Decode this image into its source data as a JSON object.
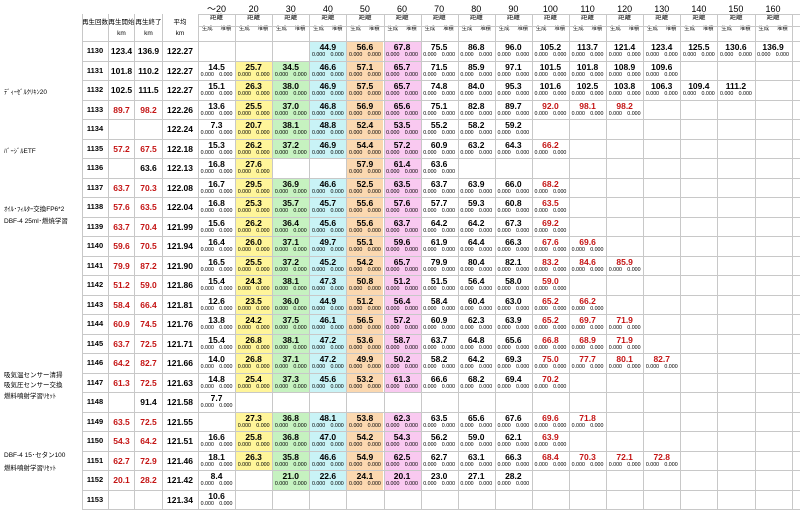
{
  "header": {
    "col_labels": [
      "再生回数",
      "再生開始",
      "再生終了",
      "平均"
    ],
    "units": [
      "km",
      "km",
      "km"
    ],
    "dist_top": "～20",
    "dist_labels": [
      "20",
      "30",
      "40",
      "50",
      "60",
      "70",
      "80",
      "90",
      "100",
      "110",
      "120",
      "130",
      "140",
      "150",
      "160"
    ],
    "sub_label": "距離",
    "sub_split": [
      "生成",
      "堆積"
    ]
  },
  "rows": [
    {
      "no": "1130",
      "start": "123.4",
      "end": "136.9",
      "avg": "122.27"
    },
    {
      "no": "1131",
      "start": "101.8",
      "end": "110.2",
      "avg": "122.27"
    },
    {
      "no": "1132",
      "start": "102.5",
      "end": "111.5",
      "avg": "122.27"
    },
    {
      "no": "1133",
      "start": "89.7",
      "end": "98.2",
      "avg": "122.26"
    },
    {
      "no": "1134",
      "start": "",
      "end": "",
      "avg": "122.24"
    },
    {
      "no": "1135",
      "start": "57.2",
      "end": "67.5",
      "avg": "122.18"
    },
    {
      "no": "1136",
      "start": "",
      "end": "63.6",
      "avg": "122.13"
    },
    {
      "no": "1137",
      "start": "63.7",
      "end": "70.3",
      "avg": "122.08"
    },
    {
      "no": "1138",
      "start": "57.6",
      "end": "63.5",
      "avg": "122.04"
    },
    {
      "no": "1139",
      "start": "63.7",
      "end": "70.4",
      "avg": "121.99"
    },
    {
      "no": "1140",
      "start": "59.6",
      "end": "70.5",
      "avg": "121.94"
    },
    {
      "no": "1141",
      "start": "79.9",
      "end": "87.2",
      "avg": "121.90"
    },
    {
      "no": "1142",
      "start": "51.2",
      "end": "59.0",
      "avg": "121.86"
    },
    {
      "no": "1143",
      "start": "58.4",
      "end": "66.4",
      "avg": "121.81"
    },
    {
      "no": "1144",
      "start": "60.9",
      "end": "74.5",
      "avg": "121.76"
    },
    {
      "no": "1145",
      "start": "63.7",
      "end": "72.5",
      "avg": "121.71"
    },
    {
      "no": "1146",
      "start": "64.2",
      "end": "82.7",
      "avg": "121.66"
    },
    {
      "no": "1147",
      "start": "61.3",
      "end": "72.5",
      "avg": "121.63"
    },
    {
      "no": "1148",
      "start": "",
      "end": "91.4",
      "avg": "121.58"
    },
    {
      "no": "1149",
      "start": "63.5",
      "end": "72.5",
      "avg": "121.55"
    },
    {
      "no": "1150",
      "start": "54.3",
      "end": "64.2",
      "avg": "121.51"
    },
    {
      "no": "1151",
      "start": "62.7",
      "end": "72.9",
      "avg": "121.46"
    },
    {
      "no": "1152",
      "start": "20.1",
      "end": "28.2",
      "avg": "121.42"
    },
    {
      "no": "1153",
      "start": "",
      "end": "",
      "avg": "121.34"
    }
  ],
  "notes": [
    {
      "text": "ﾃﾞｨｰｾﾞﾙｸﾘｷﾝ20",
      "row": 2
    },
    {
      "text": "ﾊﾞｰｼﾞﾙETF",
      "row": 5
    },
    {
      "text": "ｵｲﾙ･ﾌｨﾙﾀｰ交換FP6*2",
      "row": 8
    },
    {
      "text": "DBF-4  25ml･燃焼学習",
      "row": 8.6
    },
    {
      "text": "吸気温センサー清掃",
      "row": 16.5
    },
    {
      "text": "吸気圧センサー交換",
      "row": 17
    },
    {
      "text": "燃料噴射学習ﾘｾｯﾄ",
      "row": 17.6
    },
    {
      "text": "DBF-4  15･セタン100",
      "row": 20.6
    },
    {
      "text": "燃料噴射学習ﾘｾｯﾄ",
      "row": 21.3
    }
  ],
  "cells": [
    [
      "",
      "",
      "",
      "44.9",
      "56.6",
      "67.8",
      "75.5",
      "86.8",
      "96.0",
      "105.2",
      "113.7",
      "121.4",
      "123.4",
      "125.5",
      "130.6",
      "136.9"
    ],
    [
      "14.5",
      "25.7",
      "34.5",
      "46.6",
      "57.1",
      "65.7",
      "71.5",
      "85.9",
      "97.1",
      "101.5",
      "101.8",
      "108.9",
      "109.6",
      "",
      "",
      ""
    ],
    [
      "15.1",
      "26.3",
      "38.0",
      "46.9",
      "57.5",
      "65.7",
      "74.8",
      "84.0",
      "95.3",
      "101.6",
      "102.5",
      "103.8",
      "106.3",
      "109.4",
      "111.2",
      ""
    ],
    [
      "13.6",
      "25.5",
      "37.0",
      "46.8",
      "56.9",
      "65.6",
      "75.1",
      "82.8",
      "89.7",
      "92.0",
      "98.1",
      "98.2",
      "",
      "",
      "",
      ""
    ],
    [
      "7.3",
      "20.7",
      "38.1",
      "48.8",
      "52.4",
      "53.5",
      "55.2",
      "58.2",
      "59.2",
      "",
      "",
      "",
      "",
      "",
      "",
      ""
    ],
    [
      "15.3",
      "26.2",
      "37.2",
      "46.9",
      "54.4",
      "57.2",
      "60.9",
      "63.2",
      "64.3",
      "66.2",
      "",
      "",
      "",
      "",
      "",
      ""
    ],
    [
      "16.8",
      "27.6",
      "",
      "",
      "57.9",
      "61.4",
      "63.6",
      "",
      "",
      "",
      "",
      "",
      "",
      "",
      "",
      ""
    ],
    [
      "16.7",
      "29.5",
      "36.9",
      "46.6",
      "52.5",
      "63.5",
      "63.7",
      "63.9",
      "66.0",
      "68.2",
      "",
      "",
      "",
      "",
      "",
      ""
    ],
    [
      "16.8",
      "25.3",
      "35.7",
      "45.7",
      "55.6",
      "57.6",
      "57.7",
      "59.3",
      "60.8",
      "63.5",
      "",
      "",
      "",
      "",
      "",
      ""
    ],
    [
      "15.6",
      "26.2",
      "36.4",
      "45.6",
      "55.6",
      "63.7",
      "64.2",
      "64.2",
      "67.3",
      "69.2",
      "",
      "",
      "",
      "",
      "",
      ""
    ],
    [
      "16.4",
      "26.0",
      "37.1",
      "49.7",
      "55.1",
      "59.6",
      "61.9",
      "64.4",
      "66.3",
      "67.6",
      "69.6",
      "",
      "",
      "",
      "",
      ""
    ],
    [
      "16.5",
      "25.5",
      "37.2",
      "45.2",
      "54.2",
      "65.7",
      "79.9",
      "80.4",
      "82.1",
      "83.2",
      "84.6",
      "85.9",
      "",
      "",
      "",
      ""
    ],
    [
      "15.4",
      "24.3",
      "38.1",
      "47.3",
      "50.8",
      "51.2",
      "51.5",
      "56.4",
      "58.0",
      "59.0",
      "",
      "",
      "",
      "",
      "",
      ""
    ],
    [
      "12.6",
      "23.5",
      "36.0",
      "44.9",
      "51.2",
      "56.4",
      "58.4",
      "60.4",
      "63.0",
      "65.2",
      "66.2",
      "",
      "",
      "",
      "",
      ""
    ],
    [
      "13.8",
      "24.2",
      "37.5",
      "46.1",
      "56.5",
      "57.2",
      "60.9",
      "62.3",
      "63.9",
      "65.2",
      "69.7",
      "71.9",
      "",
      "",
      "",
      ""
    ],
    [
      "15.4",
      "26.8",
      "38.1",
      "47.2",
      "53.6",
      "58.7",
      "63.7",
      "64.8",
      "65.6",
      "66.8",
      "68.9",
      "71.9",
      "",
      "",
      "",
      ""
    ],
    [
      "14.0",
      "26.8",
      "37.1",
      "47.2",
      "49.9",
      "50.2",
      "58.2",
      "64.2",
      "69.3",
      "75.0",
      "77.7",
      "80.1",
      "82.7",
      "",
      "",
      ""
    ],
    [
      "14.8",
      "25.4",
      "37.3",
      "45.6",
      "53.2",
      "61.3",
      "66.6",
      "68.2",
      "69.4",
      "70.2",
      "",
      "",
      "",
      "",
      "",
      ""
    ],
    [
      "7.7",
      "",
      "",
      "",
      "",
      "",
      "",
      "",
      "",
      "",
      "",
      "",
      "",
      "",
      "",
      ""
    ],
    [
      "",
      "27.3",
      "36.8",
      "48.1",
      "53.8",
      "62.3",
      "63.5",
      "65.6",
      "67.6",
      "69.6",
      "71.8",
      "",
      "",
      "",
      "",
      ""
    ],
    [
      "16.6",
      "25.8",
      "36.8",
      "47.0",
      "54.2",
      "54.3",
      "56.2",
      "59.0",
      "62.1",
      "63.9",
      "",
      "",
      "",
      "",
      "",
      ""
    ],
    [
      "18.1",
      "26.3",
      "35.8",
      "46.6",
      "54.9",
      "62.5",
      "62.7",
      "63.1",
      "66.3",
      "68.4",
      "70.3",
      "72.1",
      "72.8",
      "",
      "",
      ""
    ],
    [
      "8.4",
      "",
      "21.0",
      "22.6",
      "24.1",
      "20.1",
      "23.0",
      "27.1",
      "28.2",
      "",
      "",
      "",
      "",
      "",
      "",
      ""
    ],
    [
      "10.6",
      "",
      "",
      "",
      "",
      "",
      "",
      "",
      "",
      "",
      "",
      "",
      "",
      "",
      "",
      ""
    ]
  ],
  "colors": {
    "yellow": "#fff59a",
    "green": "#c6f2c0",
    "cyan": "#c9f3f6",
    "orange": "#fbd8b0",
    "pink": "#f9c9f0",
    "red_text": "#c41414",
    "grid": "#c8c8c8"
  }
}
